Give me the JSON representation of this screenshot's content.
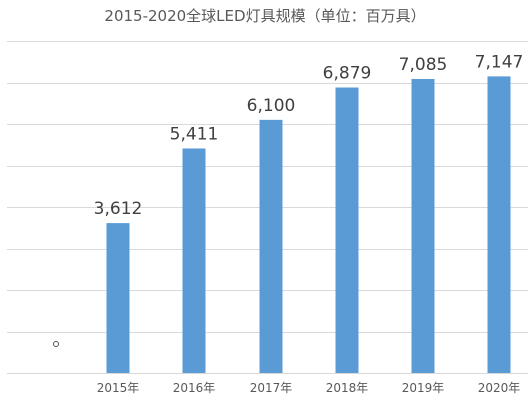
{
  "chart_data": {
    "type": "bar",
    "title": "2015-2020全球LED灯具规模（单位：百万具）",
    "categories": [
      "2015年",
      "2016年",
      "2017年",
      "2018年",
      "2019年",
      "2020年"
    ],
    "values": [
      3612,
      5411,
      6100,
      6879,
      7085,
      7147
    ],
    "data_labels": [
      "3,612",
      "5,411",
      "6,100",
      "6,879",
      "7,085",
      "7,147"
    ],
    "xlabel": "",
    "ylabel": "",
    "ylim": [
      0,
      8000
    ],
    "y_ticks": [
      0,
      1000,
      2000,
      3000,
      4000,
      5000,
      6000,
      7000,
      8000
    ],
    "y_tick_labels_visible": false,
    "grid": true,
    "legend": "none",
    "colors": {
      "bar": "#5b9bd5",
      "grid": "#d9d9d9",
      "text": "#595959"
    }
  }
}
